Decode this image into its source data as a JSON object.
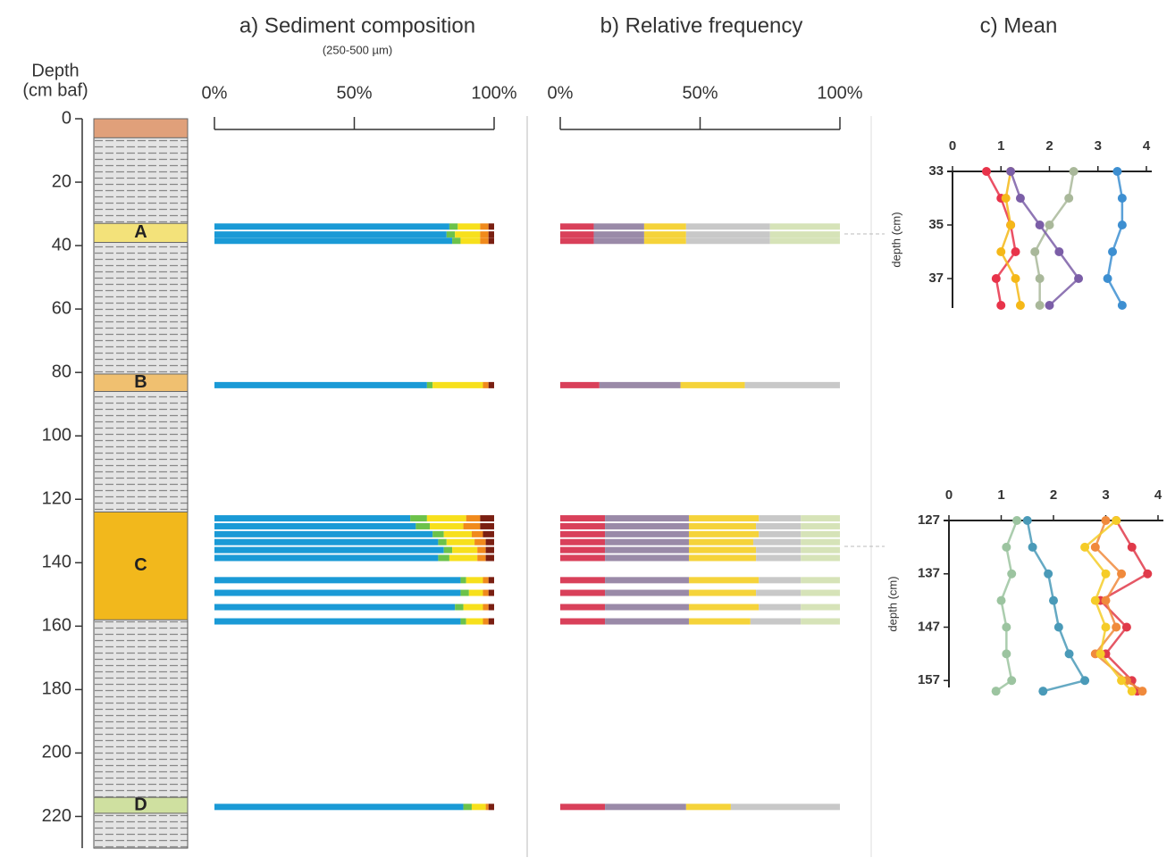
{
  "chart_data": [
    {
      "type": "column",
      "ylabel": "Depth",
      "ylabel_unit": "(cm baf)",
      "ylim": [
        0,
        230
      ],
      "yticks": [
        0,
        20,
        40,
        60,
        80,
        100,
        120,
        140,
        160,
        180,
        200,
        220
      ],
      "units": [
        {
          "top": 0,
          "bottom": 6,
          "color": "#e0a07a"
        },
        {
          "label": "A",
          "top": 33,
          "bottom": 39,
          "color": "#f3e27a"
        },
        {
          "label": "B",
          "top": 80.5,
          "bottom": 86,
          "color": "#f0c070"
        },
        {
          "label": "C",
          "top": 124,
          "bottom": 158,
          "color": "#f2b81c"
        },
        {
          "label": "D",
          "top": 214,
          "bottom": 219,
          "color": "#cfe0a0"
        }
      ]
    },
    {
      "type": "hbar",
      "title": "a) Sediment composition",
      "subtitle": "(250-500 µm)",
      "xlim": [
        0,
        100
      ],
      "xticks": [
        {
          "value": 0,
          "label": "0%"
        },
        {
          "value": 50,
          "label": "50%"
        },
        {
          "value": 100,
          "label": "100%"
        }
      ],
      "ylim": [
        0,
        230
      ],
      "y": [
        34,
        36.5,
        38.5,
        84,
        126,
        128.5,
        131,
        133.5,
        136,
        138.5,
        145.5,
        149.5,
        154,
        158.5,
        217
      ],
      "series": [
        {
          "color": "#1a9ad6",
          "values": [
            84,
            83,
            85,
            76,
            70,
            72,
            78,
            80,
            82,
            80,
            88,
            88,
            86,
            88,
            89
          ]
        },
        {
          "color": "#6cc24a",
          "values": [
            3,
            3,
            3,
            2,
            6,
            5,
            4,
            3,
            3,
            4,
            2,
            3,
            3,
            2,
            3
          ]
        },
        {
          "color": "#f7e01c",
          "values": [
            8,
            9,
            7,
            18,
            14,
            12,
            10,
            10,
            9,
            10,
            6,
            5,
            7,
            6,
            5
          ]
        },
        {
          "color": "#f08a1c",
          "values": [
            3,
            3,
            3,
            2,
            5,
            6,
            4,
            4,
            3,
            3,
            2,
            2,
            2,
            2,
            1
          ]
        },
        {
          "color": "#7a1f12",
          "values": [
            2,
            2,
            2,
            2,
            5,
            5,
            4,
            3,
            3,
            3,
            2,
            2,
            2,
            2,
            2
          ]
        }
      ]
    },
    {
      "type": "hbar",
      "title": "b) Relative frequency",
      "xlim": [
        0,
        100
      ],
      "xticks": [
        {
          "value": 0,
          "label": "0%"
        },
        {
          "value": 50,
          "label": "50%"
        },
        {
          "value": 100,
          "label": "100%"
        }
      ],
      "ylim": [
        0,
        230
      ],
      "y": [
        34,
        36.5,
        38.5,
        84,
        126,
        128.5,
        131,
        133.5,
        136,
        138.5,
        145.5,
        149.5,
        154,
        158.5,
        217
      ],
      "series": [
        {
          "color": "#d9405a",
          "values": [
            12,
            12,
            12,
            14,
            16,
            16,
            16,
            16,
            16,
            16,
            16,
            16,
            16,
            16,
            16
          ]
        },
        {
          "color": "#9a8aa8",
          "values": [
            18,
            18,
            18,
            29,
            30,
            30,
            30,
            30,
            30,
            30,
            30,
            30,
            30,
            30,
            29
          ]
        },
        {
          "color": "#f5d33a",
          "values": [
            15,
            15,
            15,
            23,
            25,
            24,
            25,
            23,
            24,
            24,
            25,
            24,
            25,
            22,
            16
          ]
        },
        {
          "color": "#c8c8c8",
          "values": [
            30,
            30,
            30,
            34,
            15,
            16,
            15,
            17,
            16,
            16,
            15,
            16,
            15,
            18,
            39
          ]
        },
        {
          "color": "#d6e3b8",
          "values": [
            25,
            25,
            25,
            0,
            14,
            14,
            14,
            14,
            14,
            14,
            14,
            14,
            14,
            14,
            0
          ]
        }
      ]
    },
    {
      "type": "line",
      "title": "c) Mean",
      "ylabel": "depth (cm)",
      "xlim": [
        0,
        4
      ],
      "xticks": [
        0,
        1,
        2,
        3,
        4
      ],
      "ylim": [
        33,
        38.1
      ],
      "yticks": [
        33,
        35,
        37
      ],
      "y": [
        33,
        34,
        35,
        36,
        37,
        38
      ],
      "series": [
        {
          "color": "#e8334a",
          "values": [
            0.7,
            1.0,
            1.2,
            1.3,
            0.9,
            1.0
          ]
        },
        {
          "color": "#f5b818",
          "values": [
            1.2,
            1.1,
            1.2,
            1.0,
            1.3,
            1.4
          ]
        },
        {
          "color": "#a9b89a",
          "values": [
            2.5,
            2.4,
            2.0,
            1.7,
            1.8,
            1.8
          ]
        },
        {
          "color": "#7b5ea7",
          "values": [
            1.2,
            1.4,
            1.8,
            2.2,
            2.6,
            2.0
          ]
        },
        {
          "color": "#3d8fd1",
          "values": [
            3.4,
            3.5,
            3.5,
            3.3,
            3.2,
            3.5
          ]
        }
      ]
    },
    {
      "type": "line",
      "ylabel": "depth (cm)",
      "xlim": [
        0,
        4
      ],
      "xticks": [
        0,
        1,
        2,
        3,
        4
      ],
      "ylim": [
        127,
        158.3
      ],
      "yticks": [
        127,
        137,
        147,
        157
      ],
      "y": [
        127,
        132,
        137,
        142,
        147,
        152,
        157,
        159
      ],
      "series": [
        {
          "color": "#9cc4a0",
          "values": [
            1.3,
            1.1,
            1.2,
            1.0,
            1.1,
            1.1,
            1.2,
            0.9
          ]
        },
        {
          "color": "#4a9ab8",
          "values": [
            1.5,
            1.6,
            1.9,
            2.0,
            2.1,
            2.3,
            2.6,
            1.8
          ]
        },
        {
          "color": "#e03a4a",
          "values": [
            3.2,
            3.5,
            3.8,
            2.9,
            3.4,
            3.0,
            3.5,
            3.6
          ]
        },
        {
          "color": "#f08a3c",
          "values": [
            3.0,
            2.8,
            3.3,
            3.0,
            3.2,
            2.8,
            3.4,
            3.7
          ]
        },
        {
          "color": "#f5cc28",
          "values": [
            3.2,
            2.6,
            3.0,
            2.8,
            3.0,
            2.9,
            3.3,
            3.5
          ]
        }
      ]
    }
  ]
}
